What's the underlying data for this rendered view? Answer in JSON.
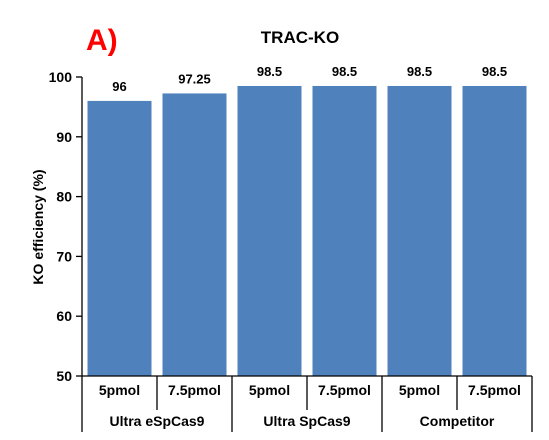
{
  "panel_label": "A)",
  "colors": {
    "bar": "#4f81bd",
    "panel_label": "#ff0000",
    "text": "#000000",
    "axis": "#000000"
  },
  "chart_data": {
    "type": "bar",
    "title": "TRAC-KO",
    "ylabel": "KO efficiency (%)",
    "xlabel": "",
    "ylim": [
      50,
      100
    ],
    "yticks": [
      50,
      60,
      70,
      80,
      90,
      100
    ],
    "categories": [
      "5pmol",
      "7.5pmol",
      "5pmol",
      "7.5pmol",
      "5pmol",
      "7.5pmol"
    ],
    "groups": [
      {
        "label": "Ultra eSpCas9",
        "span": [
          0,
          1
        ]
      },
      {
        "label": "Ultra SpCas9",
        "span": [
          2,
          3
        ]
      },
      {
        "label": "Competitor",
        "span": [
          4,
          5
        ]
      }
    ],
    "values": [
      96,
      97.25,
      98.5,
      98.5,
      98.5,
      98.5
    ],
    "data_labels": [
      "96",
      "97.25",
      "98.5",
      "98.5",
      "98.5",
      "98.5"
    ],
    "grid": false,
    "legend": "none"
  }
}
